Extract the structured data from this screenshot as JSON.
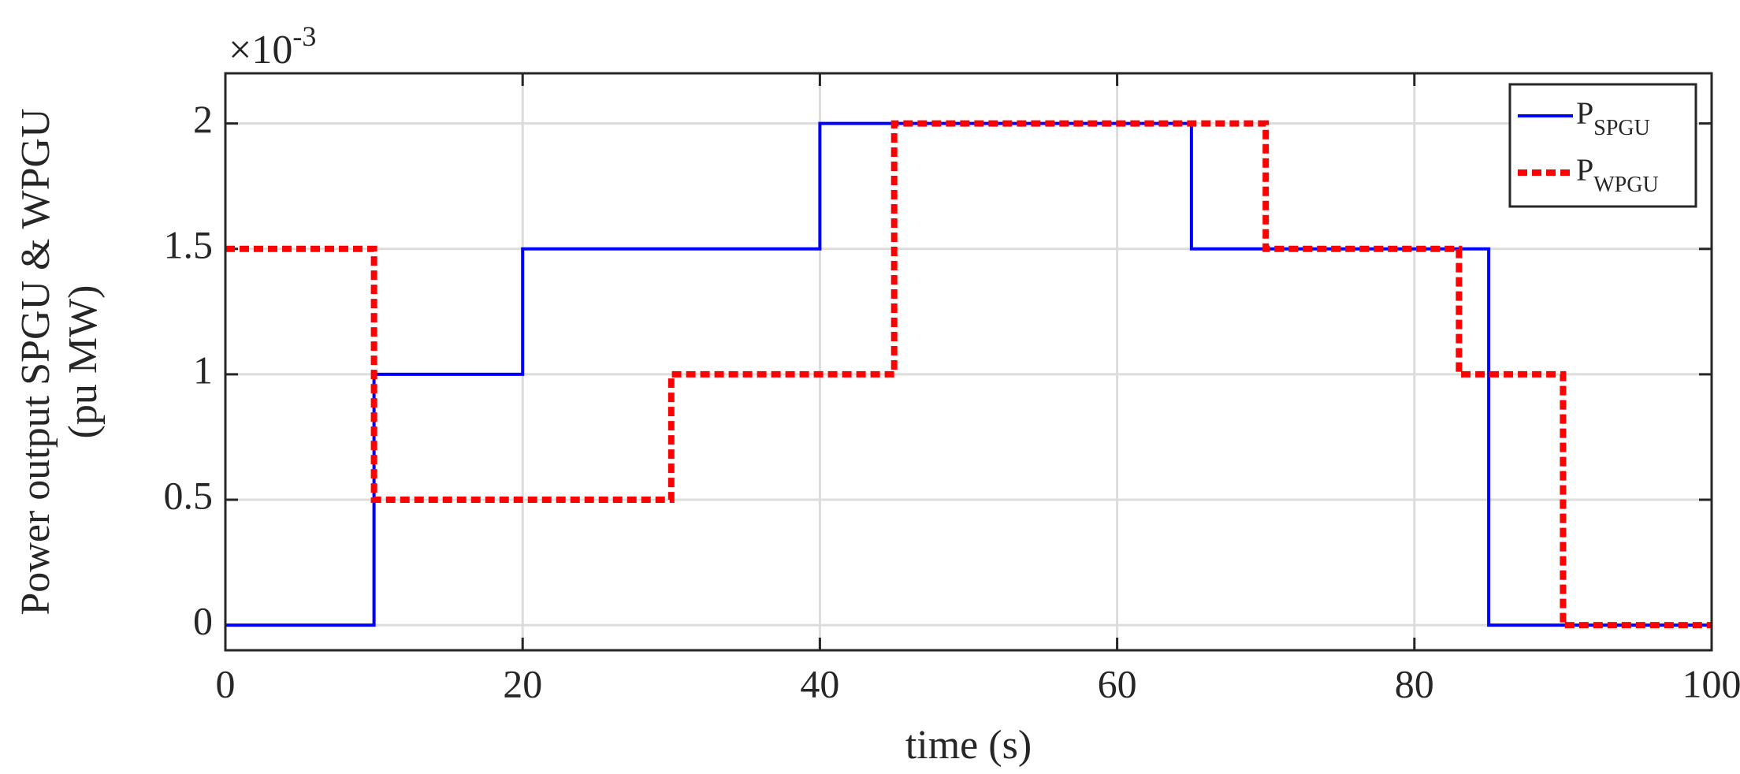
{
  "chart_data": {
    "type": "line",
    "xlabel": "time (s)",
    "ylabel": [
      "Power output SPGU & WPGU",
      "(pu MW)"
    ],
    "y_multiplier": {
      "base": "×10",
      "exponent": "-3"
    },
    "xlim": [
      0,
      100
    ],
    "xticks": [
      0,
      20,
      40,
      60,
      80,
      100
    ],
    "ylim": [
      -0.1,
      2.2
    ],
    "yticks": [
      0,
      0.5,
      1,
      1.5,
      2
    ],
    "grid": true,
    "legend": "upper right",
    "series": [
      {
        "name": "P",
        "subscript": "SPGU",
        "color": "#0000ff",
        "dash": "solid",
        "x": [
          0,
          10,
          10,
          20,
          20,
          40,
          40,
          65,
          65,
          85,
          85,
          100
        ],
        "values": [
          0,
          0,
          1,
          1,
          1.5,
          1.5,
          2,
          2,
          1.5,
          1.5,
          0,
          0
        ]
      },
      {
        "name": "P",
        "subscript": "WPGU",
        "color": "#ff0000",
        "dash": "dotted",
        "x": [
          0,
          10,
          10,
          30,
          30,
          45,
          45,
          70,
          70,
          83,
          83,
          90,
          90,
          100
        ],
        "values": [
          1.5,
          1.5,
          0.5,
          0.5,
          1,
          1,
          2,
          2,
          1.5,
          1.5,
          1,
          1,
          0,
          0
        ]
      }
    ]
  }
}
